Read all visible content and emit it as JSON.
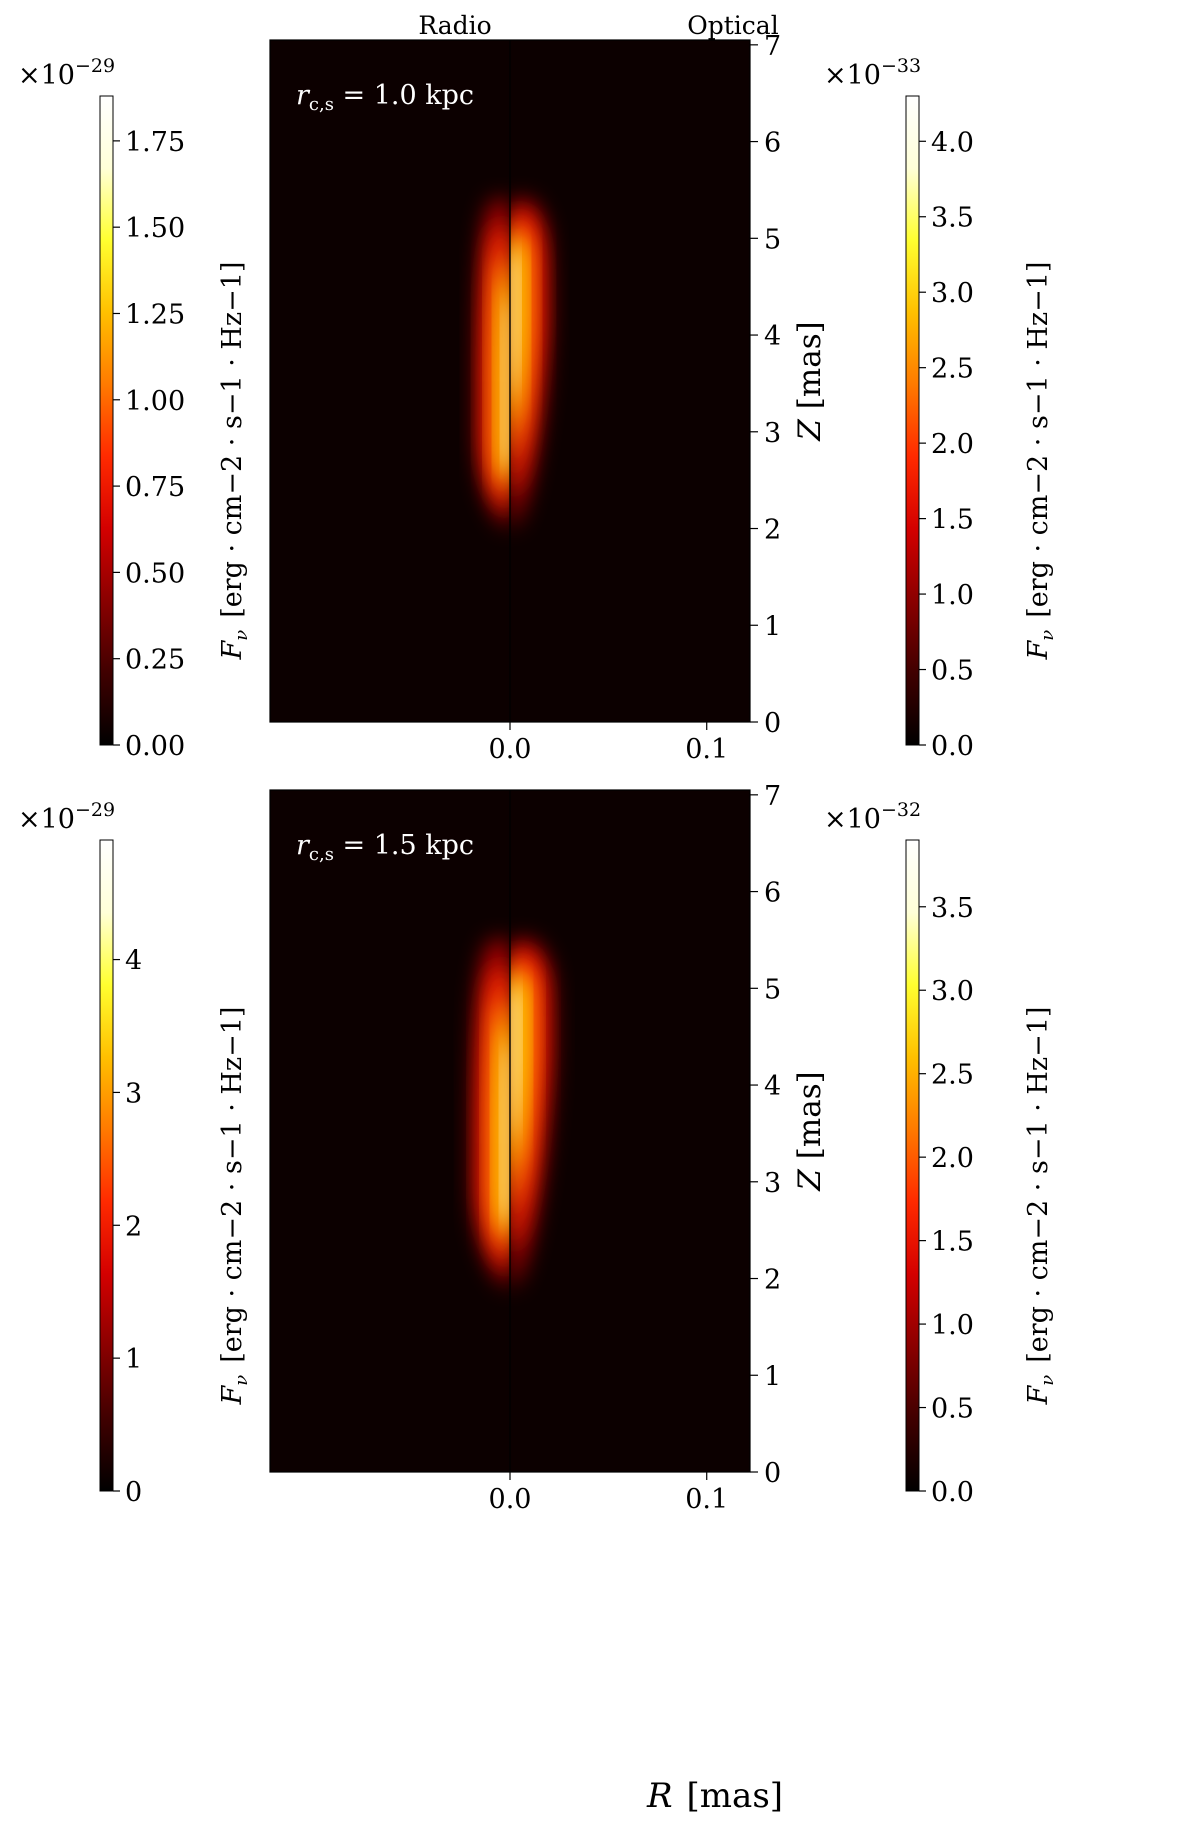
{
  "figure": {
    "column_labels": {
      "left": "Radio",
      "right": "Optical"
    },
    "xlabel_main": "R",
    "xlabel_unit": "[mas]",
    "colormap": [
      "#000000",
      "#400000",
      "#8a0000",
      "#d40000",
      "#ff2a00",
      "#ff7a00",
      "#ffc000",
      "#ffff30",
      "#ffffd8",
      "#ffffff"
    ]
  },
  "chart_data": [
    {
      "type": "heatmap",
      "panel": "top",
      "annotation": "r_c,s = 1.0 kpc",
      "annotation_main": "r",
      "annotation_sub": "c,s",
      "annotation_rest": " = 1.0 kpc",
      "left_half": "Radio",
      "right_half": "Optical",
      "xlabel": "",
      "ylabel": "Z [mas]",
      "ylabel_main": "Z",
      "ylabel_unit": "[mas]",
      "xlim": [
        -0.122,
        0.122
      ],
      "ylim": [
        0,
        7.05
      ],
      "xticks": [
        0.0,
        0.1
      ],
      "xtick_labels": [
        "0.0",
        "0.1"
      ],
      "yticks": [
        0,
        1,
        2,
        3,
        4,
        5,
        6,
        7
      ],
      "ytick_labels": [
        "0",
        "1",
        "2",
        "3",
        "4",
        "5",
        "6",
        "7"
      ],
      "emission": {
        "z_start": 2.0,
        "z_end": 5.4,
        "z_peak_radio": 3.0,
        "z_peak_optical": 4.2,
        "radio_width": 0.017,
        "optical_width": 0.02
      },
      "colorbar_left": {
        "multiplier": "×10−29",
        "multiplier_base": "×10",
        "multiplier_exp": "−29",
        "label": "F_ν [erg · cm−2 · s−1 · Hz−1]",
        "label_symbol": "F",
        "label_symbol_sub": "ν",
        "label_units": "[erg · cm−2 · s−1 · Hz−1]",
        "vmin": 0,
        "vmax": 1.88,
        "ticks": [
          0,
          0.25,
          0.5,
          0.75,
          1.0,
          1.25,
          1.5,
          1.75
        ],
        "tick_labels": [
          "0.00",
          "0.25",
          "0.50",
          "0.75",
          "1.00",
          "1.25",
          "1.50",
          "1.75"
        ]
      },
      "colorbar_right": {
        "multiplier": "×10−33",
        "multiplier_base": "×10",
        "multiplier_exp": "−33",
        "label": "F_ν [erg · cm−2 · s−1 · Hz−1]",
        "label_symbol": "F",
        "label_symbol_sub": "ν",
        "label_units": "[erg · cm−2 · s−1 · Hz−1]",
        "vmin": 0,
        "vmax": 4.3,
        "ticks": [
          0,
          0.5,
          1.0,
          1.5,
          2.0,
          2.5,
          3.0,
          3.5,
          4.0
        ],
        "tick_labels": [
          "0.0",
          "0.5",
          "1.0",
          "1.5",
          "2.0",
          "2.5",
          "3.0",
          "3.5",
          "4.0"
        ]
      }
    },
    {
      "type": "heatmap",
      "panel": "bottom",
      "annotation": "r_c,s = 1.5 kpc",
      "annotation_main": "r",
      "annotation_sub": "c,s",
      "annotation_rest": " = 1.5 kpc",
      "left_half": "Radio",
      "right_half": "Optical",
      "xlabel": "R [mas]",
      "ylabel": "Z [mas]",
      "ylabel_main": "Z",
      "ylabel_unit": "[mas]",
      "xlim": [
        -0.122,
        0.122
      ],
      "ylim": [
        0,
        7.05
      ],
      "xticks": [
        0.0,
        0.1
      ],
      "xtick_labels": [
        "0.0",
        "0.1"
      ],
      "yticks": [
        0,
        1,
        2,
        3,
        4,
        5,
        6,
        7
      ],
      "ytick_labels": [
        "0",
        "1",
        "2",
        "3",
        "4",
        "5",
        "6",
        "7"
      ],
      "emission": {
        "z_start": 1.9,
        "z_end": 5.5,
        "z_peak_radio": 3.0,
        "z_peak_optical": 4.4,
        "radio_width": 0.019,
        "optical_width": 0.022
      },
      "colorbar_left": {
        "multiplier": "×10−29",
        "multiplier_base": "×10",
        "multiplier_exp": "−29",
        "label": "F_ν [erg · cm−2 · s−1 · Hz−1]",
        "label_symbol": "F",
        "label_symbol_sub": "ν",
        "label_units": "[erg · cm−2 · s−1 · Hz−1]",
        "vmin": 0,
        "vmax": 4.9,
        "ticks": [
          0,
          1,
          2,
          3,
          4
        ],
        "tick_labels": [
          "0",
          "1",
          "2",
          "3",
          "4"
        ]
      },
      "colorbar_right": {
        "multiplier": "×10−32",
        "multiplier_base": "×10",
        "multiplier_exp": "−32",
        "label": "F_ν [erg · cm−2 · s−1 · Hz−1]",
        "label_symbol": "F",
        "label_symbol_sub": "ν",
        "label_units": "[erg · cm−2 · s−1 · Hz−1]",
        "vmin": 0,
        "vmax": 3.9,
        "ticks": [
          0,
          0.5,
          1.0,
          1.5,
          2.0,
          2.5,
          3.0,
          3.5
        ],
        "tick_labels": [
          "0.0",
          "0.5",
          "1.0",
          "1.5",
          "2.0",
          "2.5",
          "3.0",
          "3.5"
        ]
      }
    }
  ]
}
